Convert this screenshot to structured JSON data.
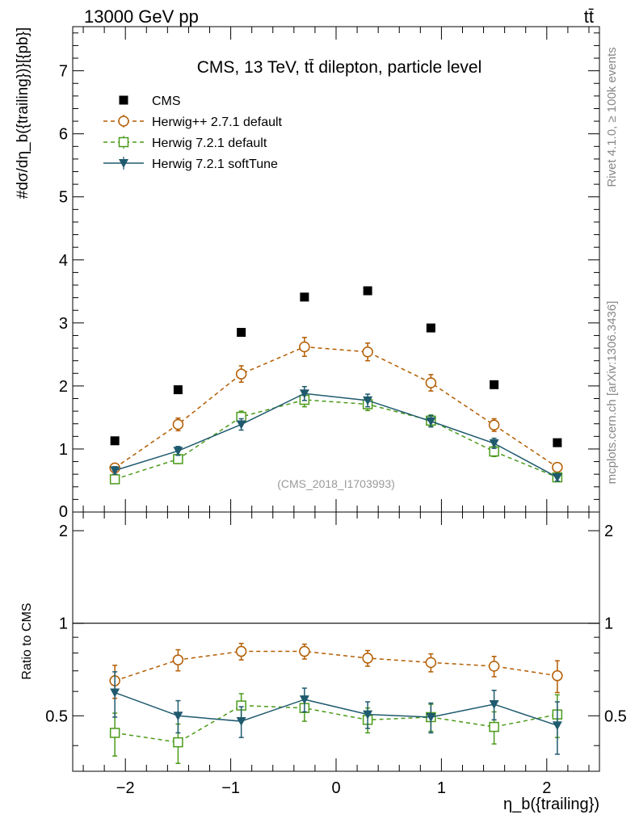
{
  "header": {
    "left": "13000 GeV pp",
    "right": "tt̄"
  },
  "side_labels": {
    "rivet": "Rivet 4.1.0, ≥ 100k events",
    "mcplots": "mcplots.cern.ch [arXiv:1306.3436]"
  },
  "chart_data": {
    "type": "scatter",
    "title": "CMS, 13 TeV, tt̄ dilepton, particle level",
    "analysis_id": "(CMS_2018_I1703993)",
    "xlabel": "η_b({trailing})",
    "ylabel": "#dσ/dη_b({trailing})}[{pb}]",
    "ratio_ylabel": "Ratio to CMS",
    "xlim": [
      -2.5,
      2.5
    ],
    "ylim": [
      0,
      7.7
    ],
    "ratio_ylim": [
      0.33,
      2.3
    ],
    "x_ticks": [
      -2,
      -1,
      0,
      1,
      2
    ],
    "x_tick_labels": [
      "−2",
      "−1",
      "0",
      "1",
      "2"
    ],
    "y_ticks": [
      1,
      2,
      3,
      4,
      5,
      6,
      7
    ],
    "y_tick_labels": [
      "1",
      "2",
      "3",
      "4",
      "5",
      "6",
      "7"
    ],
    "ratio_ticks": [
      0.5,
      1,
      2
    ],
    "ratio_tick_labels": [
      "0.5",
      "1",
      "2"
    ],
    "x": [
      -2.1,
      -1.5,
      -0.9,
      -0.3,
      0.3,
      0.9,
      1.5,
      2.1
    ],
    "legend_position": "top-left",
    "series": [
      {
        "name": "CMS",
        "marker": "filled-square",
        "color": "#000000",
        "line": "none",
        "values": [
          1.13,
          1.94,
          2.85,
          3.41,
          3.51,
          2.92,
          2.02,
          1.1
        ],
        "errors": [
          0.0,
          0.0,
          0.0,
          0.0,
          0.0,
          0.0,
          0.0,
          0.0
        ],
        "ratio": [
          1.0,
          1.0,
          1.0,
          1.0,
          1.0,
          1.0,
          1.0,
          1.0
        ],
        "ratio_errors": [
          0,
          0,
          0,
          0,
          0,
          0,
          0,
          0
        ]
      },
      {
        "name": "Herwig++ 2.7.1 default",
        "marker": "open-circle",
        "color": "#b35c00",
        "line": "dashed",
        "values": [
          0.7,
          1.39,
          2.19,
          2.62,
          2.54,
          2.05,
          1.38,
          0.71
        ],
        "errors": [
          0.06,
          0.1,
          0.13,
          0.15,
          0.14,
          0.13,
          0.1,
          0.06
        ],
        "ratio": [
          0.65,
          0.76,
          0.81,
          0.81,
          0.77,
          0.745,
          0.725,
          0.675
        ],
        "ratio_errors": [
          0.08,
          0.06,
          0.05,
          0.045,
          0.045,
          0.05,
          0.055,
          0.08
        ]
      },
      {
        "name": "Herwig 7.2.1 default",
        "marker": "open-square",
        "color": "#4b9a1a",
        "line": "dashed",
        "values": [
          0.52,
          0.84,
          1.51,
          1.78,
          1.71,
          1.45,
          0.96,
          0.55
        ],
        "errors": [
          0.06,
          0.07,
          0.09,
          0.11,
          0.1,
          0.09,
          0.08,
          0.05
        ],
        "ratio": [
          0.44,
          0.41,
          0.54,
          0.53,
          0.485,
          0.495,
          0.46,
          0.505
        ],
        "ratio_errors": [
          0.07,
          0.06,
          0.05,
          0.05,
          0.045,
          0.05,
          0.055,
          0.08
        ]
      },
      {
        "name": "Herwig 7.2.1 softTune",
        "marker": "filled-triangle-down",
        "color": "#1f5a6e",
        "line": "solid",
        "values": [
          0.66,
          0.97,
          1.39,
          1.88,
          1.77,
          1.44,
          1.09,
          0.55
        ],
        "errors": [
          0.06,
          0.07,
          0.09,
          0.11,
          0.1,
          0.09,
          0.08,
          0.06
        ],
        "ratio": [
          0.595,
          0.5,
          0.48,
          0.565,
          0.505,
          0.495,
          0.545,
          0.465
        ],
        "ratio_errors": [
          0.1,
          0.06,
          0.055,
          0.05,
          0.05,
          0.055,
          0.06,
          0.09
        ]
      }
    ]
  }
}
